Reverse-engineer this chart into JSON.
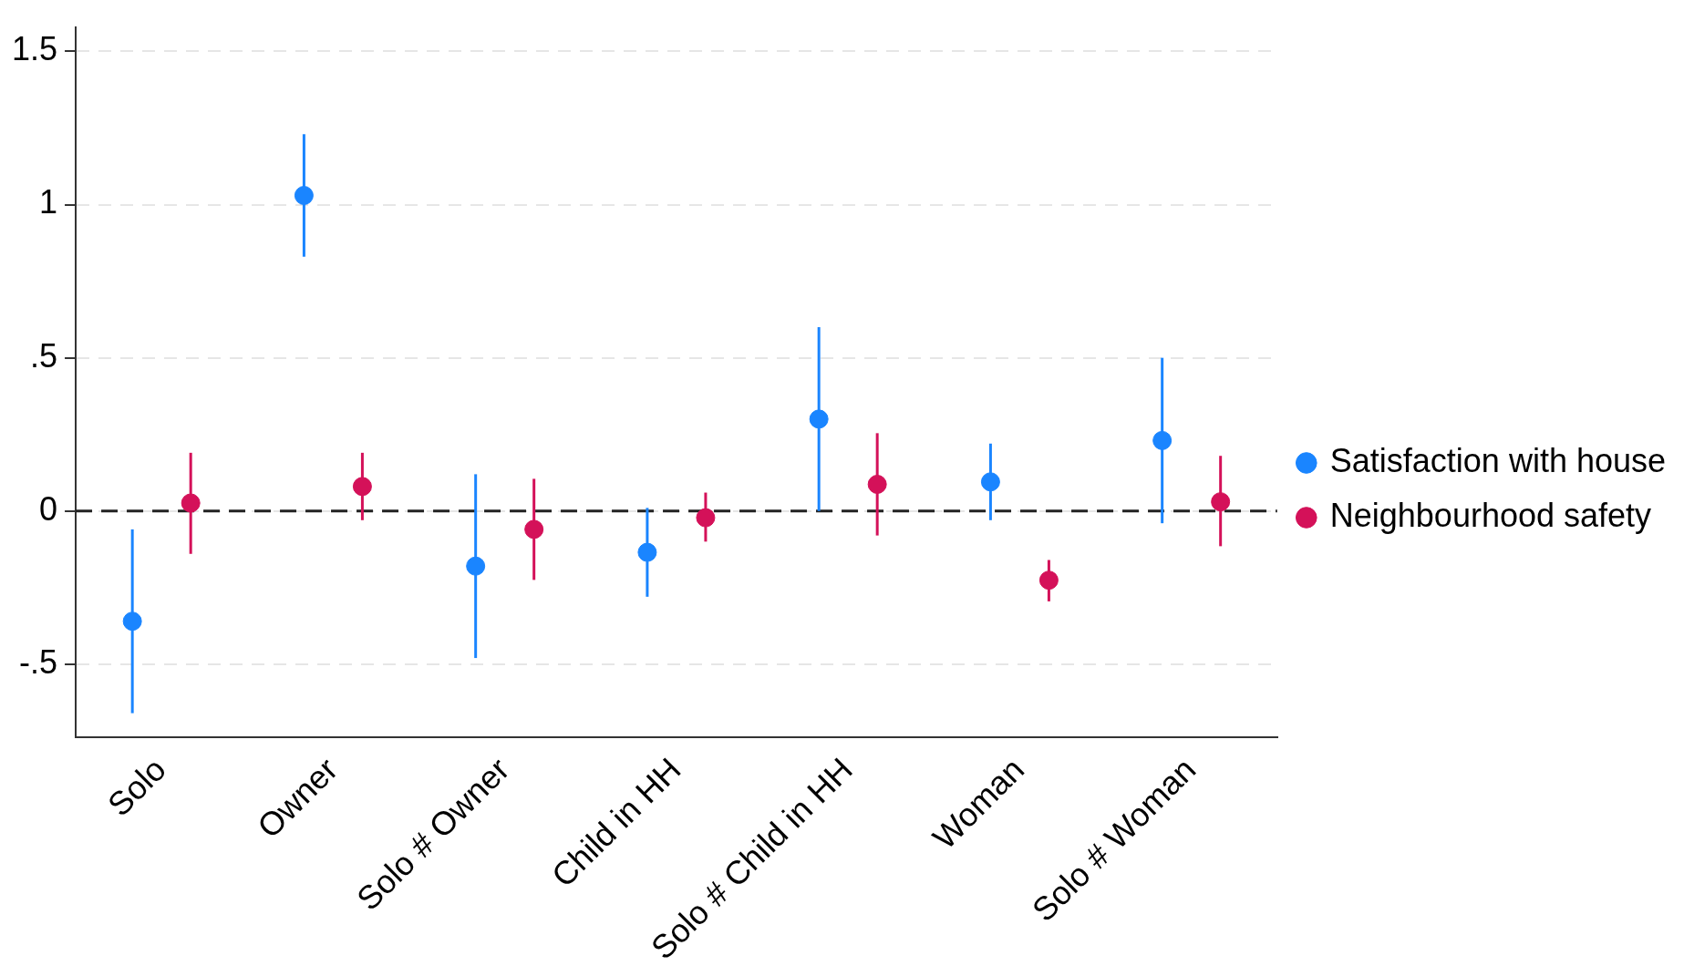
{
  "chart_data": {
    "type": "scatter",
    "categories": [
      "Solo",
      "Owner",
      "Solo # Owner",
      "Child in HH",
      "Solo # Child in HH",
      "Woman",
      "Solo # Woman"
    ],
    "series": [
      {
        "name": "Satisfaction with house",
        "color": "#1a85ff",
        "values": [
          -0.36,
          1.03,
          -0.18,
          -0.135,
          0.3,
          0.095,
          0.23
        ],
        "errors": [
          [
            -0.66,
            -0.06
          ],
          [
            0.83,
            1.23
          ],
          [
            -0.48,
            0.12
          ],
          [
            -0.28,
            0.01
          ],
          [
            0.0,
            0.6
          ],
          [
            -0.03,
            0.22
          ],
          [
            -0.04,
            0.5
          ]
        ]
      },
      {
        "name": "Neighbourhood safety",
        "color": "#d41159",
        "values": [
          0.026,
          0.08,
          -0.06,
          -0.022,
          0.087,
          -0.226,
          0.03
        ],
        "errors": [
          [
            -0.14,
            0.19
          ],
          [
            -0.03,
            0.19
          ],
          [
            -0.225,
            0.105
          ],
          [
            -0.1,
            0.06
          ],
          [
            -0.08,
            0.254
          ],
          [
            -0.295,
            -0.16
          ],
          [
            -0.115,
            0.18
          ]
        ]
      }
    ],
    "ylim": [
      -0.74,
      1.58
    ],
    "yticks": [
      {
        "value": -0.5,
        "label": "-.5"
      },
      {
        "value": 0,
        "label": "0"
      },
      {
        "value": 0.5,
        "label": ".5"
      },
      {
        "value": 1,
        "label": "1"
      },
      {
        "value": 1.5,
        "label": "1.5"
      }
    ],
    "ref_lines": [
      {
        "axis": "y",
        "value": 0,
        "color": "#222222",
        "line_style": "dashed"
      }
    ],
    "grid": "y",
    "legend": "right",
    "marker": "circle"
  }
}
